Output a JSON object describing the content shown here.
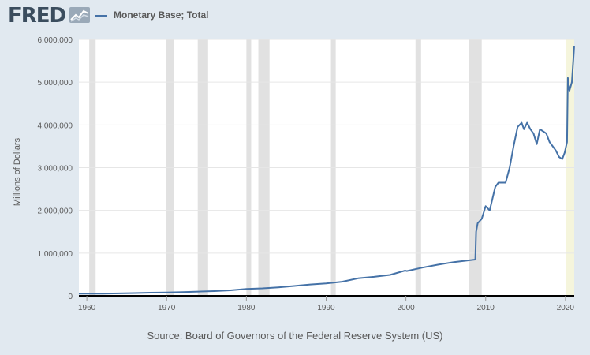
{
  "logo": {
    "text": "FRED",
    "mark_icon": "fred-chart-icon"
  },
  "chart_data": {
    "type": "line",
    "title": "",
    "xlabel": "",
    "ylabel": "Millions of Dollars",
    "source": "Source: Board of Governors of the Federal Reserve System (US)",
    "xlim": [
      1959,
      2021.1
    ],
    "ylim": [
      0,
      6000000
    ],
    "x_ticks": [
      1960,
      1970,
      1980,
      1990,
      2000,
      2010,
      2020
    ],
    "x_tick_labels": [
      "1960",
      "1970",
      "1980",
      "1990",
      "2000",
      "2010",
      "2020"
    ],
    "y_ticks": [
      0,
      1000000,
      2000000,
      3000000,
      4000000,
      5000000,
      6000000
    ],
    "y_tick_labels": [
      "0",
      "1,000,000",
      "2,000,000",
      "3,000,000",
      "4,000,000",
      "5,000,000",
      "6,000,000"
    ],
    "grid": true,
    "legend": "top-left",
    "colors": {
      "line": "#4572a7",
      "recession": "#e1e1e1",
      "highlight": "#f5f5dc",
      "background": "#e1e9f0",
      "plot": "#ffffff"
    },
    "recessions": [
      [
        1960.3,
        1961.1
      ],
      [
        1969.9,
        1970.9
      ],
      [
        1973.9,
        1975.2
      ],
      [
        1980.0,
        1980.6
      ],
      [
        1981.5,
        1982.9
      ],
      [
        1990.6,
        1991.2
      ],
      [
        2001.2,
        2001.9
      ],
      [
        2007.9,
        2009.5
      ]
    ],
    "highlight_range": [
      2020.1,
      2021.1
    ],
    "series": [
      {
        "name": "Monetary Base; Total",
        "x": [
          1959,
          1960,
          1962,
          1964,
          1966,
          1968,
          1970,
          1972,
          1974,
          1976,
          1978,
          1980,
          1982,
          1984,
          1986,
          1988,
          1990,
          1992,
          1994,
          1996,
          1998,
          1999.9,
          2000.1,
          2002,
          2004,
          2006,
          2008.7,
          2008.8,
          2009,
          2009.5,
          2010,
          2010.5,
          2011.2,
          2011.6,
          2012,
          2012.5,
          2013,
          2013.5,
          2014,
          2014.5,
          2014.8,
          2015.2,
          2015.6,
          2016,
          2016.4,
          2016.8,
          2017.2,
          2017.6,
          2018,
          2018.4,
          2018.8,
          2019.2,
          2019.6,
          2019.9,
          2020.2,
          2020.3,
          2020.5,
          2020.8,
          2021.1
        ],
        "values": [
          50000,
          50000,
          52000,
          58000,
          65000,
          74000,
          80000,
          88000,
          100000,
          110000,
          130000,
          160000,
          175000,
          200000,
          230000,
          265000,
          290000,
          330000,
          410000,
          445000,
          490000,
          590000,
          580000,
          660000,
          730000,
          790000,
          850000,
          1500000,
          1700000,
          1800000,
          2100000,
          2000000,
          2550000,
          2650000,
          2650000,
          2650000,
          3000000,
          3500000,
          3950000,
          4050000,
          3900000,
          4050000,
          3900000,
          3800000,
          3550000,
          3900000,
          3850000,
          3800000,
          3600000,
          3500000,
          3400000,
          3250000,
          3200000,
          3350000,
          3600000,
          5100000,
          4800000,
          5000000,
          5850000
        ]
      }
    ]
  }
}
